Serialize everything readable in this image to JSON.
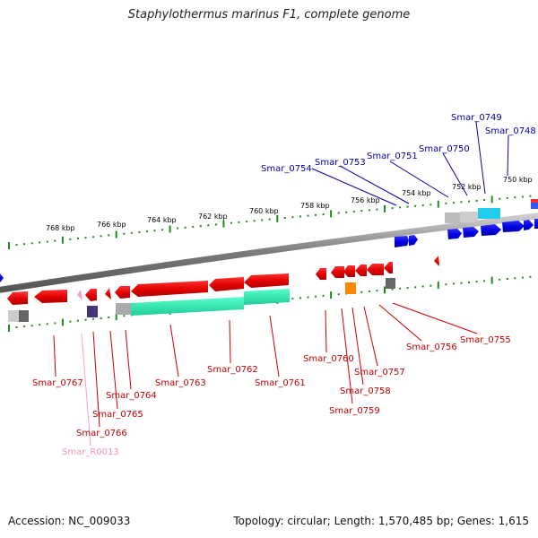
{
  "title": "Staphylothermus marinus F1, complete genome",
  "footer": {
    "accession": "Accession: NC_009033",
    "summary": "Topology: circular; Length: 1,570,485 bp; Genes: 1,615"
  },
  "kbp_labels": [
    "768 kbp",
    "766 kbp",
    "764 kbp",
    "762 kbp",
    "760 kbp",
    "758 kbp",
    "756 kbp",
    "754 kbp",
    "752 kbp",
    "750 kbp"
  ],
  "gene_labels_bottom": [
    "Smar_0767",
    "Smar_0766",
    "Smar_R0013",
    "Smar_0765",
    "Smar_0764",
    "Smar_0763",
    "Smar_0762",
    "Smar_0761",
    "Smar_0760",
    "Smar_0759",
    "Smar_0758",
    "Smar_0757",
    "Smar_0756",
    "Smar_0755"
  ],
  "gene_labels_top": [
    "Smar_0754",
    "Smar_0753",
    "Smar_0751",
    "Smar_0750",
    "Smar_0749",
    "Smar_0748"
  ],
  "colors": {
    "reverse_gene": "#ee0000",
    "forward_gene": "#0000ee",
    "rna_gene": "#f4a0c8",
    "cog_green": "#33eebb",
    "cog_cyan": "#22ccee",
    "backbone": "#888888",
    "tick": "#228822"
  }
}
